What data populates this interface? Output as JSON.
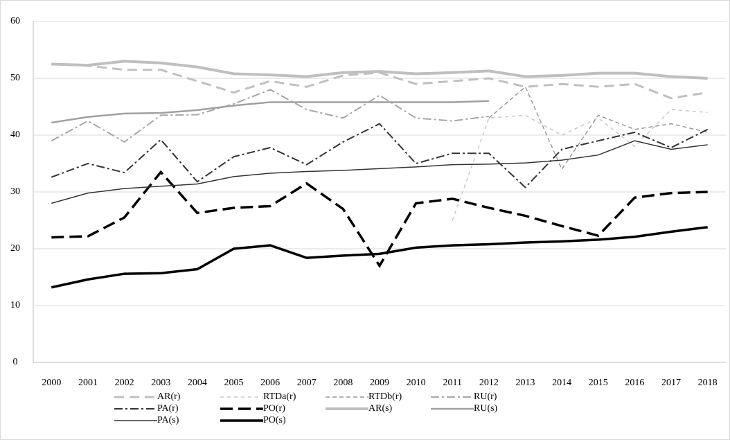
{
  "chart_data": {
    "type": "line",
    "categories": [
      "2000",
      "2001",
      "2002",
      "2003",
      "2004",
      "2005",
      "2006",
      "2007",
      "2008",
      "2009",
      "2010",
      "2011",
      "2012",
      "2013",
      "2014",
      "2015",
      "2016",
      "2017",
      "2018"
    ],
    "ylim": [
      0,
      60
    ],
    "yticks": [
      0,
      10,
      20,
      30,
      40,
      50,
      60
    ],
    "grid": true,
    "series": [
      {
        "name": "AR(r)",
        "color": "#c0c0c0",
        "width": 3,
        "dash": "14 8",
        "values": [
          52.5,
          52.2,
          51.5,
          51.5,
          49.5,
          47.5,
          49.5,
          48.5,
          50.5,
          51,
          49,
          49.5,
          50,
          48.5,
          49,
          48.5,
          49,
          46.5,
          47.5
        ]
      },
      {
        "name": "RTDa(r)",
        "color": "#c8c8c8",
        "width": 1.5,
        "dash": "5 5",
        "values": [
          null,
          null,
          null,
          null,
          null,
          null,
          null,
          null,
          null,
          null,
          null,
          25,
          43,
          43.5,
          40,
          43,
          38,
          44.5,
          44
        ]
      },
      {
        "name": "RTDb(r)",
        "color": "#999999",
        "width": 1.5,
        "dash": "6 4",
        "values": [
          null,
          null,
          null,
          null,
          null,
          null,
          null,
          null,
          null,
          null,
          null,
          null,
          43,
          48.5,
          34,
          43.5,
          41,
          42,
          40.5
        ]
      },
      {
        "name": "RU(r)",
        "color": "#a6a6a6",
        "width": 2,
        "dash": "12 4 3 4",
        "values": [
          39,
          42.5,
          38.8,
          43.5,
          43.6,
          45.5,
          48,
          44.5,
          43,
          47,
          43,
          42.5,
          43.3,
          null,
          null,
          null,
          null,
          null,
          null
        ]
      },
      {
        "name": "PA(r)",
        "color": "#333333",
        "width": 2,
        "dash": "12 4 3 4",
        "values": [
          32.6,
          35,
          33.4,
          39.2,
          31.8,
          36.2,
          37.8,
          34.8,
          38.8,
          42,
          35,
          36.8,
          36.8,
          30.8,
          37.5,
          39,
          40.5,
          37.8,
          41
        ]
      },
      {
        "name": "PO(r)",
        "color": "#000000",
        "width": 3.5,
        "dash": "18 8",
        "values": [
          22,
          22.2,
          25.5,
          33.5,
          26.3,
          27.2,
          27.5,
          31.5,
          27,
          17,
          28,
          28.8,
          27.2,
          25.8,
          24,
          22.3,
          29,
          29.8,
          30
        ]
      },
      {
        "name": "AR(s)",
        "color": "#bfbfbf",
        "width": 4,
        "dash": "",
        "values": [
          52.5,
          52.3,
          53,
          52.7,
          52,
          50.8,
          50.6,
          50.3,
          51,
          51.2,
          50.8,
          51,
          51.3,
          50.3,
          50.5,
          50.9,
          50.9,
          50.3,
          50
        ]
      },
      {
        "name": "RU(s)",
        "color": "#a0a0a0",
        "width": 2.5,
        "dash": "",
        "values": [
          42.2,
          43.2,
          43.8,
          43.9,
          44.4,
          45.2,
          45.8,
          45.8,
          45.8,
          45.8,
          45.8,
          45.8,
          46,
          null,
          null,
          null,
          null,
          null,
          null
        ]
      },
      {
        "name": "PA(s)",
        "color": "#333333",
        "width": 1.5,
        "dash": "",
        "values": [
          28,
          29.8,
          30.6,
          31,
          31.4,
          32.7,
          33.3,
          33.6,
          33.8,
          34.1,
          34.4,
          34.8,
          34.9,
          35.1,
          35.6,
          36.5,
          39,
          37.5,
          38.3
        ]
      },
      {
        "name": "PO(s)",
        "color": "#000000",
        "width": 3.5,
        "dash": "",
        "values": [
          13.2,
          14.6,
          15.6,
          15.7,
          16.4,
          20,
          20.6,
          18.4,
          18.8,
          19.1,
          20.2,
          20.6,
          20.8,
          21.1,
          21.3,
          21.6,
          22.1,
          23,
          23.8
        ]
      }
    ]
  }
}
